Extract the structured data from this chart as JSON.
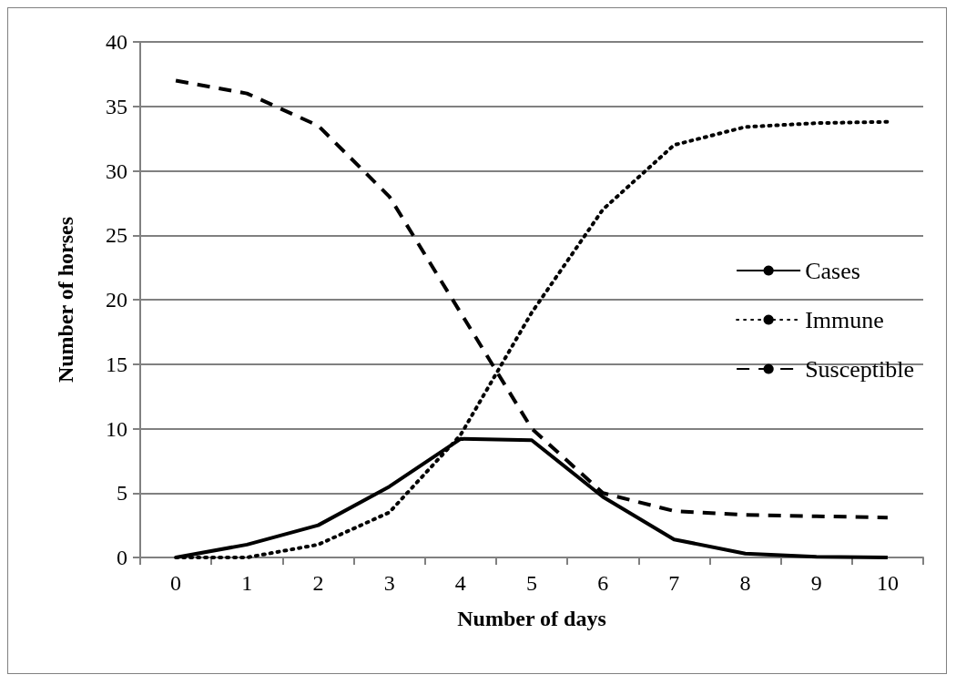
{
  "chart_data": {
    "type": "line",
    "xlabel": "Number of days",
    "ylabel": "Number of horses",
    "categories": [
      "0",
      "1",
      "2",
      "3",
      "4",
      "5",
      "6",
      "7",
      "8",
      "9",
      "10"
    ],
    "series": [
      {
        "name": "Cases",
        "color": "#000000",
        "line_style": "solid",
        "values": [
          0,
          1,
          2.5,
          5.5,
          9.2,
          9.1,
          4.7,
          1.4,
          0.3,
          0.05,
          0
        ]
      },
      {
        "name": "Immune",
        "color": "#000000",
        "line_style": "dotted",
        "values": [
          0,
          0,
          1,
          3.5,
          9.5,
          19,
          27,
          32,
          33.4,
          33.7,
          33.8
        ]
      },
      {
        "name": "Susceptible",
        "color": "#000000",
        "line_style": "dashed",
        "values": [
          37,
          36,
          33.5,
          28,
          19,
          10,
          5,
          3.6,
          3.3,
          3.2,
          3.1
        ]
      }
    ],
    "ylim": [
      0,
      40
    ],
    "yticks": [
      0,
      5,
      10,
      15,
      20,
      25,
      30,
      35,
      40
    ],
    "grid": "y",
    "legend": "right",
    "marker": "none"
  }
}
